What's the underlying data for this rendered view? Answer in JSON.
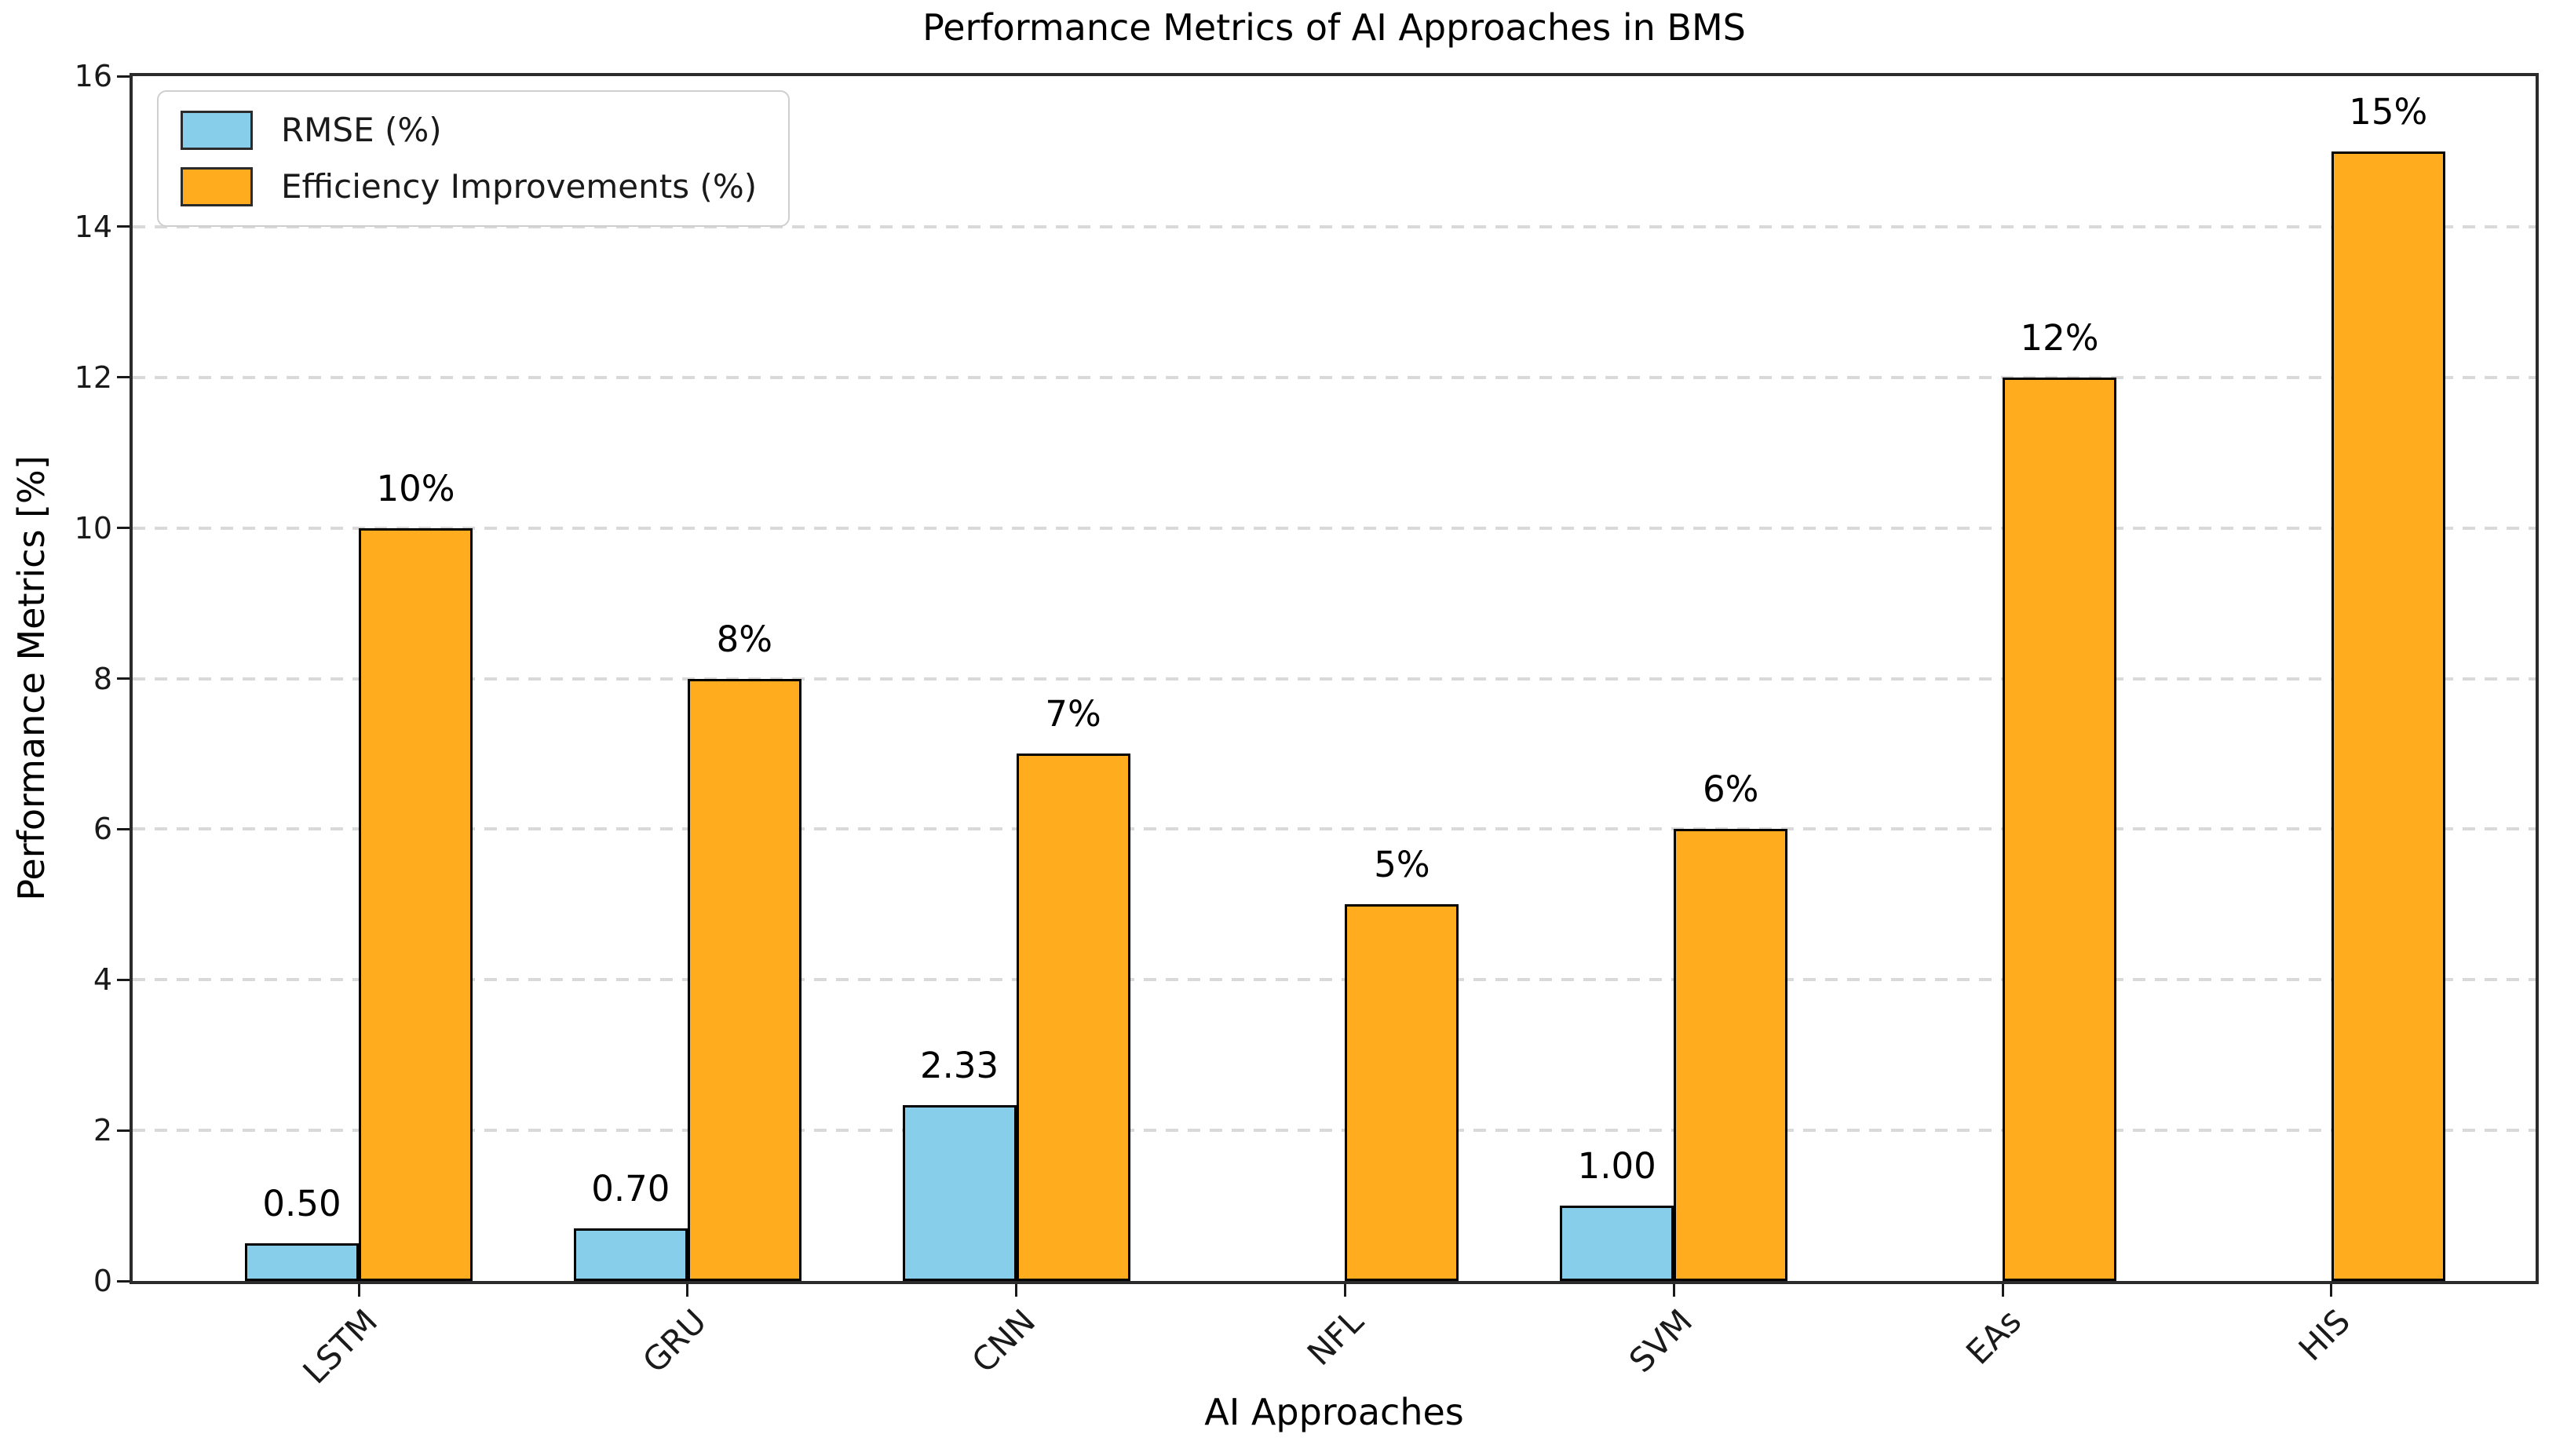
{
  "chart_data": {
    "type": "bar",
    "title": "Performance Metrics of AI Approaches in BMS",
    "xlabel": "AI Approaches",
    "ylabel": "Performance Metrics [%]",
    "categories": [
      "LSTM",
      "GRU",
      "CNN",
      "NFL",
      "SVM",
      "EAs",
      "HIS"
    ],
    "series": [
      {
        "name": "RMSE (%)",
        "color": "#87CEEB",
        "edge_color": "#000000",
        "values": [
          0.5,
          0.7,
          2.33,
          0,
          1.0,
          0,
          0
        ],
        "data_labels": [
          "0.50",
          "0.70",
          "2.33",
          "",
          "1.00",
          "",
          ""
        ]
      },
      {
        "name": "Efficiency Improvements (%)",
        "color": "#FFAD1E",
        "edge_color": "#000000",
        "values": [
          10,
          8,
          7,
          5,
          6,
          12,
          15
        ],
        "data_labels": [
          "10%",
          "8%",
          "7%",
          "5%",
          "6%",
          "12%",
          "15%"
        ]
      }
    ],
    "ylim": [
      0,
      16
    ],
    "yticks": [
      0,
      2,
      4,
      6,
      8,
      10,
      12,
      14,
      16
    ],
    "grid": {
      "axis": "y",
      "style": "dashed",
      "color": "#d9d9d9"
    },
    "legend": {
      "position": "upper left",
      "entries": [
        "RMSE (%)",
        "Efficiency Improvements (%)"
      ]
    }
  }
}
